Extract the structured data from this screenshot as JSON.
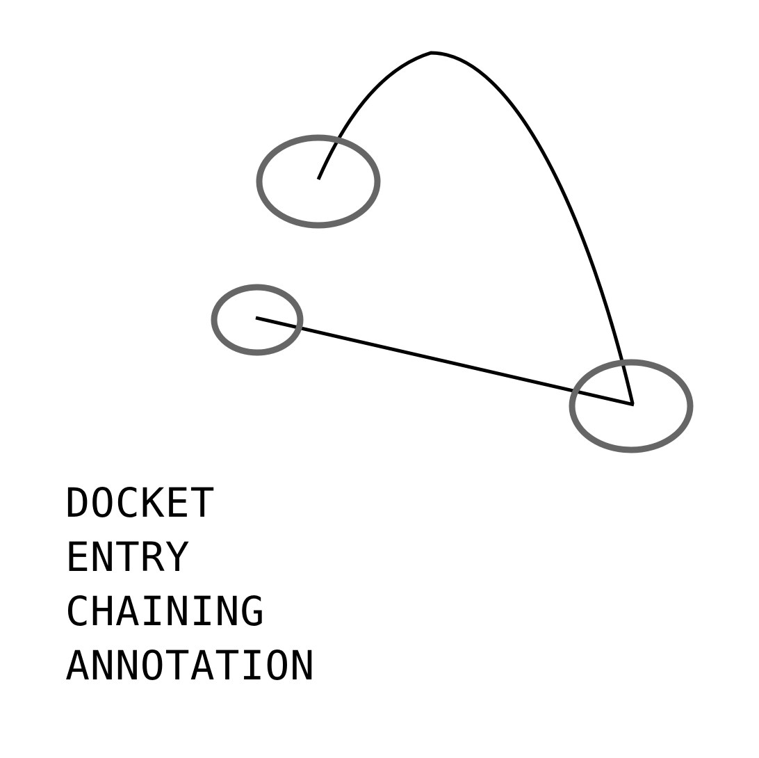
{
  "colors": {
    "background": "#ffffff",
    "connector": "#000000",
    "ring": "#666666",
    "text": "#000000"
  },
  "caption": {
    "lines": [
      "DOCKET",
      "ENTRY",
      "CHAINING",
      "ANNOTATION"
    ]
  }
}
